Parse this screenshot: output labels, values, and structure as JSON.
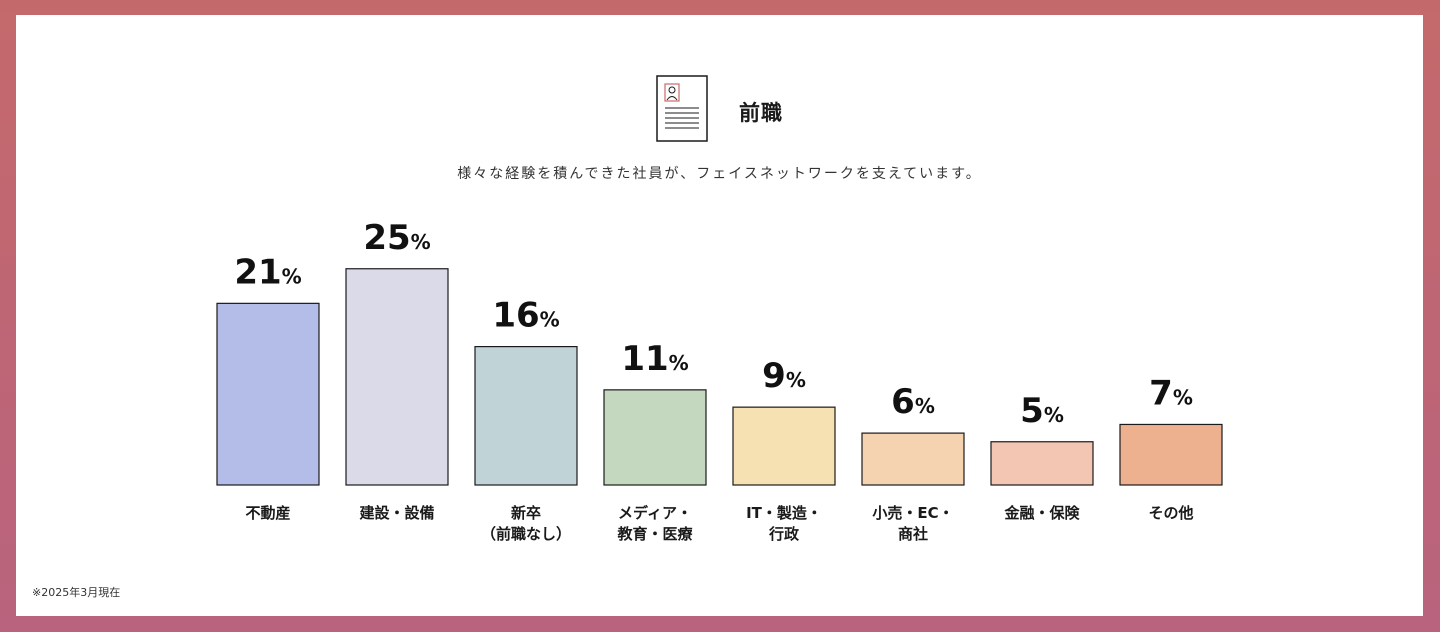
{
  "header": {
    "title": "前職",
    "subtitle": "様々な経験を積んできた社員が、フェイスネットワークを支えています。",
    "icon": "resume-document-icon"
  },
  "footnote": "※2025年3月現在",
  "colors": {
    "background": "#c4696b",
    "bar_stroke": "#1a1a1a"
  },
  "chart_data": {
    "type": "bar",
    "categories": [
      [
        "不動産"
      ],
      [
        "建設・設備"
      ],
      [
        "新卒",
        "（前職なし）"
      ],
      [
        "メディア・",
        "教育・医療"
      ],
      [
        "IT・製造・",
        "行政"
      ],
      [
        "小売・EC・",
        "商社"
      ],
      [
        "金融・保険"
      ],
      [
        "その他"
      ]
    ],
    "values": [
      21,
      25,
      16,
      11,
      9,
      6,
      5,
      7
    ],
    "value_labels": [
      "21",
      "25",
      "16",
      "11",
      "9",
      "6",
      "5",
      "7"
    ],
    "unit": "%",
    "bar_colors": [
      "#b4bce8",
      "#dadae8",
      "#c0d3d6",
      "#c3d8bf",
      "#f6e1b3",
      "#f5d3b1",
      "#f3c6b3",
      "#eeb190"
    ],
    "title": "",
    "xlabel": "",
    "ylabel": "",
    "ylim": [
      0,
      25
    ],
    "grid": false
  }
}
